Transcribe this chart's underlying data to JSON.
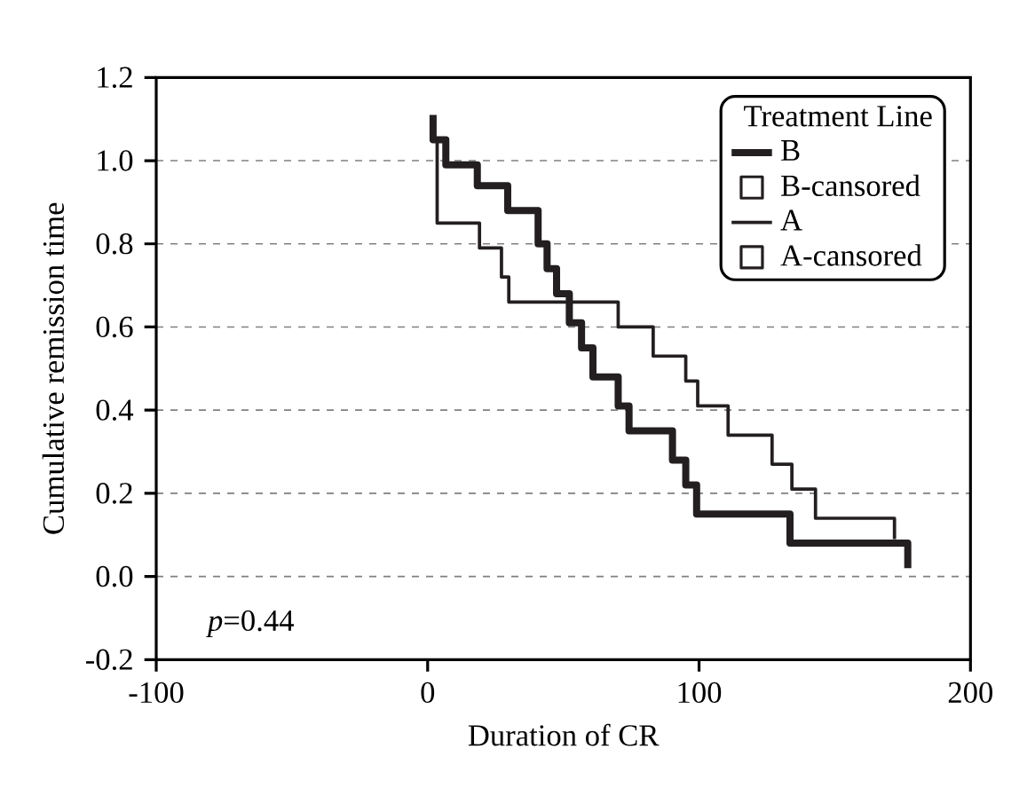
{
  "chart_data": {
    "type": "step",
    "xlabel": "Duration of CR",
    "ylabel": "Cumulative remission time",
    "legend_title": "Treatment Line",
    "xlim": [
      -100,
      200
    ],
    "xticks": [
      -100,
      0,
      100,
      200
    ],
    "ylim": [
      -0.2,
      1.2
    ],
    "yticks": [
      -0.2,
      {
        "value": 0,
        "label": "0.0"
      },
      0.2,
      0.4,
      0.6,
      0.8,
      {
        "value": 1,
        "label": "1.0"
      },
      1.2
    ],
    "grid": "y",
    "legend": "top right",
    "annotations": [
      "*p*=0.44"
    ],
    "series": [
      {
        "name": "B",
        "color": "#231f20",
        "x": [
          2,
          2,
          6.7,
          18.3,
          29.5,
          40.7,
          44,
          47.5,
          52.2,
          56.7,
          60.9,
          70.2,
          74.2,
          90.2,
          95.1,
          99.1,
          133.5,
          176.9
        ],
        "values": [
          1.11,
          1.05,
          0.99,
          0.94,
          0.88,
          0.8,
          0.74,
          0.68,
          0.61,
          0.55,
          0.48,
          0.41,
          0.35,
          0.28,
          0.22,
          0.15,
          0.08,
          0.02
        ]
      },
      {
        "name": "B-cansored",
        "type": "scatter",
        "marker": "square",
        "color": "#231f20"
      },
      {
        "name": "A",
        "color": "#231f20",
        "x": [
          3.5,
          3.5,
          19.1,
          27.2,
          29.9,
          70.2,
          83.1,
          95.1,
          99.5,
          110.7,
          126.9,
          134.2,
          142.9,
          172
        ],
        "values": [
          1.05,
          0.85,
          0.79,
          0.72,
          0.66,
          0.6,
          0.53,
          0.47,
          0.41,
          0.34,
          0.27,
          0.21,
          0.14,
          0.09
        ]
      },
      {
        "name": "A-cansored",
        "type": "scatter",
        "marker": "square",
        "color": "#231f20"
      }
    ]
  }
}
